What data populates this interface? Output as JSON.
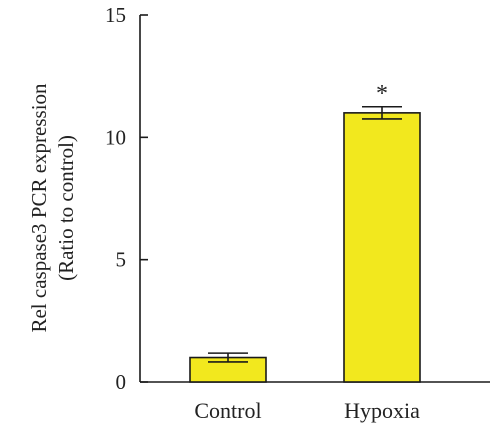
{
  "chart_data": {
    "type": "bar",
    "categories": [
      "Control",
      "Hypoxia"
    ],
    "values": [
      1.0,
      11.0
    ],
    "errors": [
      0.18,
      0.25
    ],
    "significance": [
      "",
      "*"
    ],
    "ylabel_line1": "Rel caspase3 PCR expression",
    "ylabel_line2": "(Ratio to control)",
    "ylim": [
      0,
      15
    ],
    "yticks": [
      0,
      5,
      10,
      15
    ],
    "grid": false,
    "colors": {
      "bar_fill": "#f2e81e",
      "bar_stroke": "#1a1a1a",
      "axis": "#1a1a1a"
    }
  }
}
